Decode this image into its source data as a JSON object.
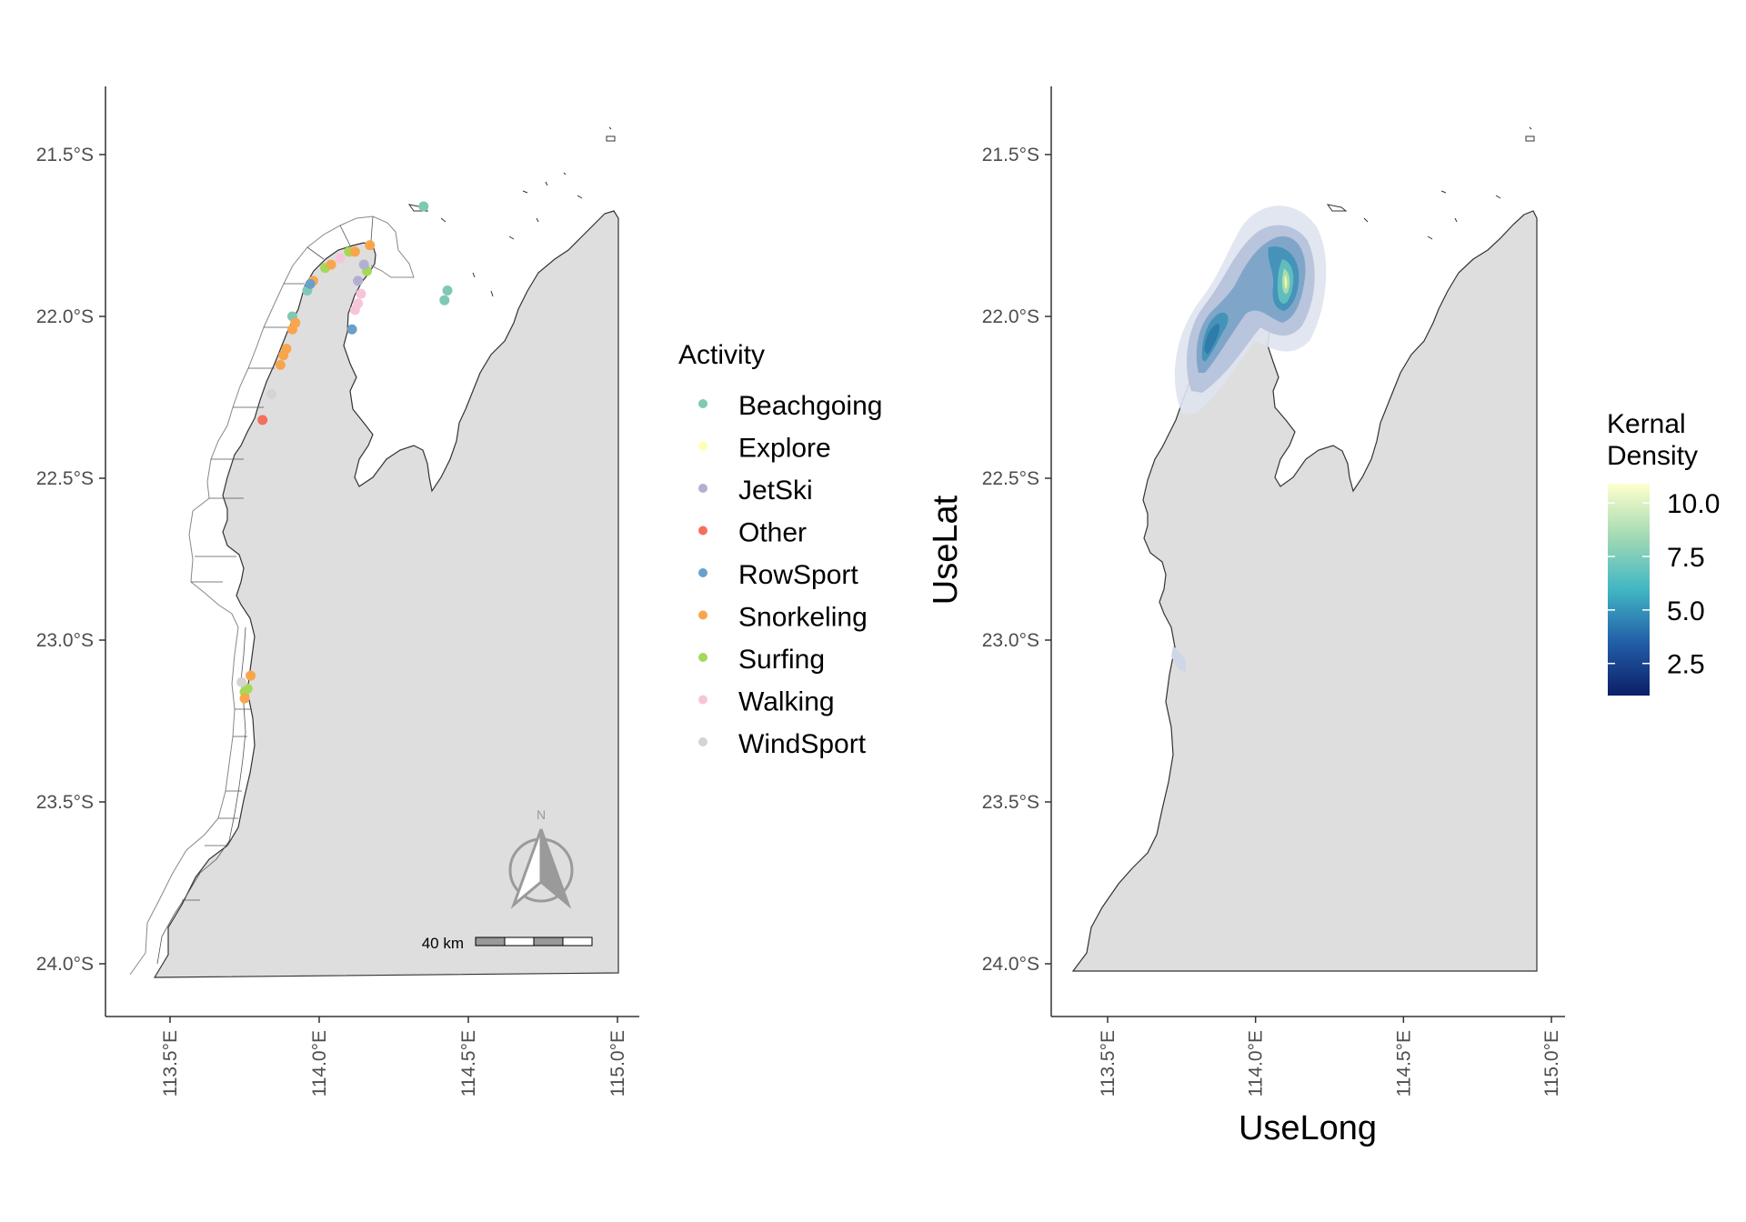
{
  "lat_ticks": [
    "21.5°S",
    "22.0°S",
    "22.5°S",
    "23.0°S",
    "23.5°S",
    "24.0°S"
  ],
  "lon_ticks": [
    "113.5°E",
    "114.0°E",
    "114.5°E",
    "115.0°E"
  ],
  "left_map": {
    "legend_title": "Activity",
    "activities": [
      {
        "name": "Beachgoing",
        "color": "#7fc9b4"
      },
      {
        "name": "Explore",
        "color": "#ffffb3"
      },
      {
        "name": "JetSki",
        "color": "#b3afd1"
      },
      {
        "name": "Other",
        "color": "#f46f5e"
      },
      {
        "name": "RowSport",
        "color": "#6a9fcb"
      },
      {
        "name": "Snorkeling",
        "color": "#f9a54c"
      },
      {
        "name": "Surfing",
        "color": "#a6d858"
      },
      {
        "name": "Walking",
        "color": "#f7c5d9"
      },
      {
        "name": "WindSport",
        "color": "#d4d4d4"
      }
    ],
    "points": [
      {
        "a": "Beachgoing",
        "lon": 114.35,
        "lat": -21.66
      },
      {
        "a": "Beachgoing",
        "lon": 114.43,
        "lat": -21.92
      },
      {
        "a": "Beachgoing",
        "lon": 114.42,
        "lat": -21.95
      },
      {
        "a": "Beachgoing",
        "lon": 113.91,
        "lat": -22.0
      },
      {
        "a": "Beachgoing",
        "lon": 113.96,
        "lat": -21.92
      },
      {
        "a": "Surfing",
        "lon": 114.1,
        "lat": -21.8
      },
      {
        "a": "Surfing",
        "lon": 114.02,
        "lat": -21.85
      },
      {
        "a": "Surfing",
        "lon": 114.16,
        "lat": -21.86
      },
      {
        "a": "Surfing",
        "lon": 113.76,
        "lat": -23.15
      },
      {
        "a": "Surfing",
        "lon": 113.75,
        "lat": -23.16
      },
      {
        "a": "Snorkeling",
        "lon": 114.17,
        "lat": -21.78
      },
      {
        "a": "Snorkeling",
        "lon": 114.12,
        "lat": -21.8
      },
      {
        "a": "Snorkeling",
        "lon": 114.04,
        "lat": -21.84
      },
      {
        "a": "Snorkeling",
        "lon": 113.98,
        "lat": -21.89
      },
      {
        "a": "Snorkeling",
        "lon": 113.92,
        "lat": -22.02
      },
      {
        "a": "Snorkeling",
        "lon": 113.91,
        "lat": -22.04
      },
      {
        "a": "Snorkeling",
        "lon": 113.89,
        "lat": -22.1
      },
      {
        "a": "Snorkeling",
        "lon": 113.88,
        "lat": -22.12
      },
      {
        "a": "Snorkeling",
        "lon": 113.87,
        "lat": -22.15
      },
      {
        "a": "Snorkeling",
        "lon": 113.77,
        "lat": -23.11
      },
      {
        "a": "Snorkeling",
        "lon": 113.75,
        "lat": -23.18
      },
      {
        "a": "WindSport",
        "lon": 113.84,
        "lat": -22.24
      },
      {
        "a": "WindSport",
        "lon": 113.74,
        "lat": -23.13
      },
      {
        "a": "Other",
        "lon": 113.81,
        "lat": -22.32
      },
      {
        "a": "RowSport",
        "lon": 114.11,
        "lat": -22.04
      },
      {
        "a": "RowSport",
        "lon": 113.97,
        "lat": -21.9
      },
      {
        "a": "JetSki",
        "lon": 114.13,
        "lat": -21.89
      },
      {
        "a": "JetSki",
        "lon": 114.15,
        "lat": -21.84
      },
      {
        "a": "Walking",
        "lon": 114.14,
        "lat": -21.93
      },
      {
        "a": "Walking",
        "lon": 114.13,
        "lat": -21.96
      },
      {
        "a": "Walking",
        "lon": 114.12,
        "lat": -21.98
      },
      {
        "a": "Walking",
        "lon": 114.07,
        "lat": -21.82
      }
    ],
    "scale_label": "40 km",
    "north_label": "N"
  },
  "right_map": {
    "xlabel": "UseLong",
    "ylabel": "UseLat",
    "legend_title_line1": "Kernal",
    "legend_title_line2": "Density",
    "colorbar_ticks": [
      "10.0",
      "7.5",
      "5.0",
      "2.5"
    ],
    "colorbar_range": [
      1,
      10.9
    ],
    "colors": {
      "low": "#162a6e",
      "mid": "#41b6c4",
      "high": "#ffffcc",
      "outer": "#dfe3ef"
    }
  },
  "colors": {
    "land": "#dedede",
    "coast": "#333333",
    "zone": "#888888"
  }
}
